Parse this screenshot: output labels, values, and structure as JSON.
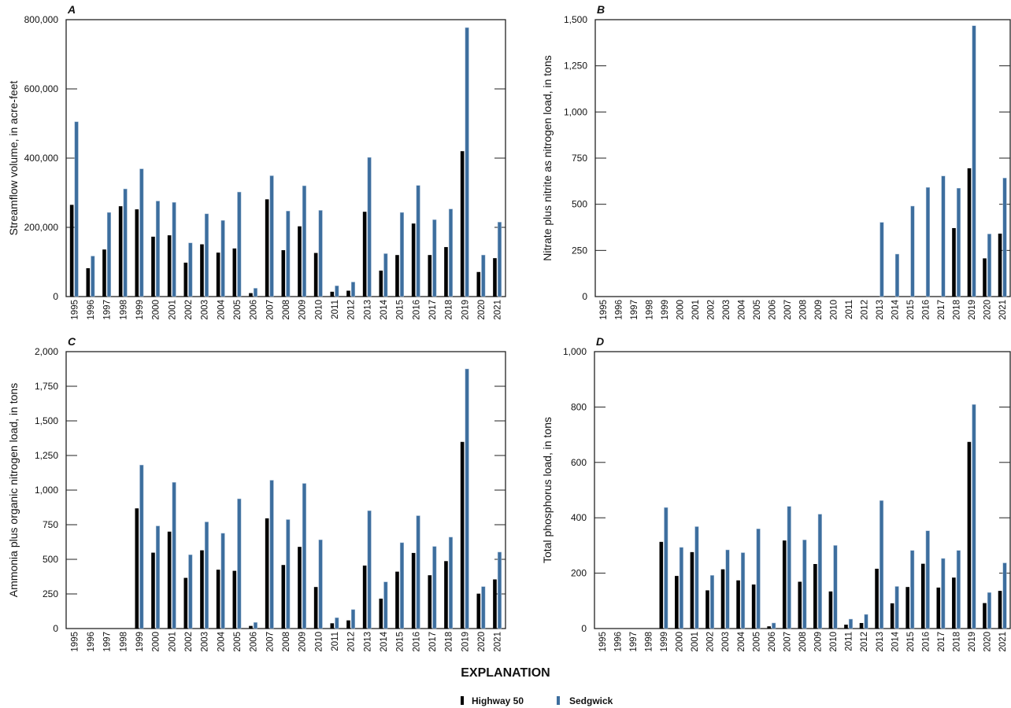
{
  "legend": {
    "title": "EXPLANATION",
    "items": [
      {
        "label": "Highway 50",
        "color": "#000000"
      },
      {
        "label": "Sedgwick",
        "color": "#3d6e9e"
      }
    ]
  },
  "chart_data": [
    {
      "type": "bar",
      "panel": "A",
      "ylabel": "Streamflow volume, in acre-feet",
      "ylim": [
        0,
        800000
      ],
      "yticks": [
        0,
        200000,
        400000,
        600000,
        800000
      ],
      "ytick_labels": [
        "0",
        "200,000",
        "400,000",
        "600,000",
        "800,000"
      ],
      "categories": [
        "1995",
        "1996",
        "1997",
        "1998",
        "1999",
        "2000",
        "2001",
        "2002",
        "2003",
        "2004",
        "2005",
        "2006",
        "2007",
        "2008",
        "2009",
        "2010",
        "2011",
        "2012",
        "2013",
        "2014",
        "2015",
        "2016",
        "2017",
        "2018",
        "2019",
        "2020",
        "2021"
      ],
      "series": [
        {
          "name": "Highway 50",
          "values": [
            265000,
            82000,
            136000,
            261000,
            252000,
            173000,
            177000,
            98000,
            151000,
            127000,
            139000,
            10000,
            281000,
            134000,
            203000,
            126000,
            14000,
            17000,
            245000,
            75000,
            120000,
            211000,
            120000,
            143000,
            420000,
            71000,
            111000
          ]
        },
        {
          "name": "Sedgwick",
          "values": [
            505000,
            117000,
            243000,
            311000,
            369000,
            276000,
            272000,
            155000,
            239000,
            220000,
            302000,
            24000,
            349000,
            247000,
            320000,
            249000,
            31000,
            42000,
            402000,
            124000,
            243000,
            321000,
            222000,
            253000,
            777000,
            120000,
            215000
          ]
        }
      ]
    },
    {
      "type": "bar",
      "panel": "B",
      "ylabel": "Nitrate plus nitrite as nitrogen load, in tons",
      "ylim": [
        0,
        1500
      ],
      "yticks": [
        0,
        250,
        500,
        750,
        1000,
        1250,
        1500
      ],
      "ytick_labels": [
        "0",
        "250",
        "500",
        "750",
        "1,000",
        "1,250",
        "1,500"
      ],
      "categories": [
        "1995",
        "1996",
        "1997",
        "1998",
        "1999",
        "2000",
        "2001",
        "2002",
        "2003",
        "2004",
        "2005",
        "2006",
        "2007",
        "2008",
        "2009",
        "2010",
        "2011",
        "2012",
        "2013",
        "2014",
        "2015",
        "2016",
        "2017",
        "2018",
        "2019",
        "2020",
        "2021"
      ],
      "series": [
        {
          "name": "Highway 50",
          "values": [
            null,
            null,
            null,
            null,
            null,
            null,
            null,
            null,
            null,
            null,
            null,
            null,
            null,
            null,
            null,
            null,
            null,
            null,
            null,
            null,
            null,
            null,
            null,
            371,
            695,
            207,
            341
          ]
        },
        {
          "name": "Sedgwick",
          "values": [
            null,
            null,
            null,
            null,
            null,
            null,
            null,
            null,
            null,
            null,
            null,
            null,
            null,
            null,
            null,
            null,
            null,
            null,
            402,
            230,
            490,
            591,
            653,
            587,
            1467,
            339,
            642
          ]
        }
      ]
    },
    {
      "type": "bar",
      "panel": "C",
      "ylabel": "Ammonia plus organic nitrogen load, in tons",
      "ylim": [
        0,
        2000
      ],
      "yticks": [
        0,
        250,
        500,
        750,
        1000,
        1250,
        1500,
        1750,
        2000
      ],
      "ytick_labels": [
        "0",
        "250",
        "500",
        "750",
        "1,000",
        "1,250",
        "1,500",
        "1,750",
        "2,000"
      ],
      "categories": [
        "1995",
        "1996",
        "1997",
        "1998",
        "1999",
        "2000",
        "2001",
        "2002",
        "2003",
        "2004",
        "2005",
        "2006",
        "2007",
        "2008",
        "2009",
        "2010",
        "2011",
        "2012",
        "2013",
        "2014",
        "2015",
        "2016",
        "2017",
        "2018",
        "2019",
        "2020",
        "2021"
      ],
      "series": [
        {
          "name": "Highway 50",
          "values": [
            null,
            null,
            null,
            null,
            868,
            548,
            700,
            366,
            565,
            425,
            417,
            19,
            796,
            459,
            590,
            300,
            38,
            59,
            455,
            216,
            411,
            546,
            385,
            487,
            1348,
            252,
            355
          ]
        },
        {
          "name": "Sedgwick",
          "values": [
            null,
            null,
            null,
            null,
            1181,
            741,
            1056,
            533,
            770,
            688,
            937,
            44,
            1071,
            787,
            1048,
            641,
            78,
            137,
            851,
            337,
            620,
            815,
            593,
            660,
            1875,
            303,
            552
          ]
        }
      ]
    },
    {
      "type": "bar",
      "panel": "D",
      "ylabel": "Total phosphorus load, in tons",
      "ylim": [
        0,
        1000
      ],
      "yticks": [
        0,
        200,
        400,
        600,
        800,
        1000
      ],
      "ytick_labels": [
        "0",
        "200",
        "400",
        "600",
        "800",
        "1,000"
      ],
      "categories": [
        "1995",
        "1996",
        "1997",
        "1998",
        "1999",
        "2000",
        "2001",
        "2002",
        "2003",
        "2004",
        "2005",
        "2006",
        "2007",
        "2008",
        "2009",
        "2010",
        "2011",
        "2012",
        "2013",
        "2014",
        "2015",
        "2016",
        "2017",
        "2018",
        "2019",
        "2020",
        "2021"
      ],
      "series": [
        {
          "name": "Highway 50",
          "values": [
            null,
            null,
            null,
            null,
            313,
            190,
            276,
            138,
            214,
            174,
            159,
            8,
            318,
            169,
            233,
            134,
            14,
            20,
            216,
            91,
            150,
            234,
            148,
            184,
            674,
            92,
            136
          ]
        },
        {
          "name": "Sedgwick",
          "values": [
            null,
            null,
            null,
            null,
            437,
            293,
            368,
            192,
            284,
            274,
            360,
            20,
            441,
            320,
            413,
            300,
            34,
            51,
            462,
            152,
            282,
            353,
            253,
            282,
            809,
            130,
            237
          ]
        }
      ]
    }
  ]
}
